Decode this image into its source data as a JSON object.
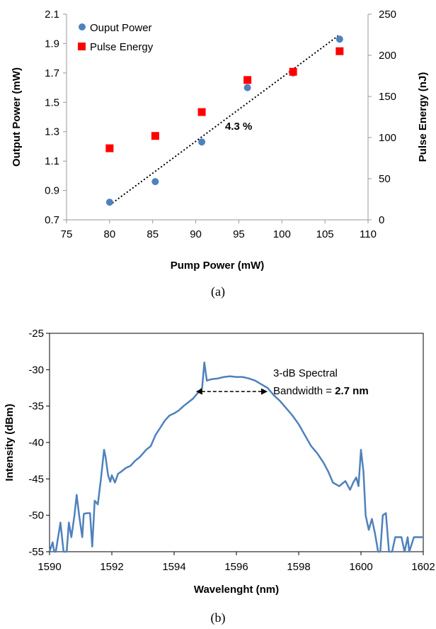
{
  "chart_data": [
    {
      "type": "scatter",
      "caption": "(a)",
      "xlabel": "Pump Power (mW)",
      "ylabel": "Output Power (mW)",
      "y2label": "Pulse Energy (nJ)",
      "xlim": [
        75,
        110
      ],
      "ylim": [
        0.7,
        2.1
      ],
      "y2lim": [
        0,
        250
      ],
      "xticks": [
        "75",
        "80",
        "85",
        "90",
        "95",
        "100",
        "105",
        "110"
      ],
      "yticks": [
        "0.7",
        "0.9",
        "1.1",
        "1.3",
        "1.5",
        "1.7",
        "1.9",
        "2.1"
      ],
      "y2ticks": [
        "0",
        "50",
        "100",
        "150",
        "200",
        "250"
      ],
      "legend_position": "top-left",
      "grid": false,
      "series": [
        {
          "name": "Ouput Power",
          "axis": "left",
          "marker": "circle",
          "color": "#4f81bd",
          "x": [
            80,
            85.3,
            90.7,
            96,
            101.3,
            106.7
          ],
          "y": [
            0.82,
            0.96,
            1.23,
            1.6,
            1.7,
            1.93
          ]
        },
        {
          "name": "Pulse Energy",
          "axis": "right",
          "marker": "square",
          "color": "#ff0000",
          "x": [
            80,
            85.3,
            90.7,
            96,
            101.3,
            106.7
          ],
          "y": [
            87,
            102,
            131,
            170,
            180,
            205
          ]
        }
      ],
      "trendline": {
        "x": [
          80,
          106.7
        ],
        "y": [
          0.8,
          1.96
        ]
      },
      "annotations": [
        {
          "text": "4.3 %",
          "x": 96.5,
          "y": 1.34
        }
      ]
    },
    {
      "type": "line",
      "caption": "(b)",
      "xlabel": "Wavelenght (nm)",
      "ylabel": "Intensity (dBm)",
      "xlim": [
        1590,
        1602
      ],
      "ylim": [
        -55,
        -25
      ],
      "xticks": [
        "1590",
        "1592",
        "1594",
        "1596",
        "1598",
        "1600",
        "1602"
      ],
      "yticks": [
        "-25",
        "-30",
        "-35",
        "-40",
        "-45",
        "-50",
        "-55"
      ],
      "grid": false,
      "series": [
        {
          "color": "#4f81bd",
          "x": [
            1590,
            1590.1,
            1590.15,
            1590.2,
            1590.35,
            1590.45,
            1590.55,
            1590.62,
            1590.7,
            1590.8,
            1590.87,
            1590.95,
            1591.05,
            1591.1,
            1591.2,
            1591.3,
            1591.37,
            1591.45,
            1591.55,
            1591.65,
            1591.75,
            1591.8,
            1591.88,
            1591.95,
            1592.0,
            1592.1,
            1592.2,
            1592.3,
            1592.45,
            1592.6,
            1592.75,
            1592.9,
            1593.0,
            1593.1,
            1593.25,
            1593.4,
            1593.55,
            1593.7,
            1593.85,
            1594.0,
            1594.15,
            1594.3,
            1594.45,
            1594.6,
            1594.7,
            1594.8,
            1594.9,
            1594.97,
            1595.05,
            1595.2,
            1595.4,
            1595.6,
            1595.8,
            1596.0,
            1596.2,
            1596.4,
            1596.6,
            1596.8,
            1597.0,
            1597.2,
            1597.4,
            1597.6,
            1597.8,
            1598.0,
            1598.2,
            1598.4,
            1598.6,
            1598.8,
            1598.95,
            1599.1,
            1599.3,
            1599.5,
            1599.65,
            1599.75,
            1599.85,
            1599.92,
            1600.0,
            1600.08,
            1600.15,
            1600.25,
            1600.35,
            1600.45,
            1600.55,
            1600.62,
            1600.7,
            1600.8,
            1600.9,
            1601.0,
            1601.1,
            1601.3,
            1601.4,
            1601.5,
            1601.55,
            1601.7,
            1601.9,
            1602.0
          ],
          "y": [
            -55,
            -53.7,
            -55,
            -55,
            -51,
            -55,
            -55,
            -51,
            -53,
            -50,
            -47.2,
            -50,
            -53,
            -49.8,
            -49.7,
            -49.7,
            -54.3,
            -48,
            -48.5,
            -45,
            -41,
            -42,
            -44.5,
            -45.4,
            -44.5,
            -45.5,
            -44.3,
            -44,
            -43.5,
            -43.2,
            -42.5,
            -42,
            -41.5,
            -41,
            -40.5,
            -39,
            -38,
            -37,
            -36.3,
            -36,
            -35.6,
            -35,
            -34.5,
            -34,
            -33.5,
            -33,
            -32.5,
            -29,
            -31.5,
            -31.3,
            -31.2,
            -31,
            -30.9,
            -31,
            -31,
            -31.2,
            -31.5,
            -32,
            -32.5,
            -33.5,
            -34.3,
            -35.3,
            -36.3,
            -37.5,
            -39,
            -40.5,
            -41.5,
            -42.8,
            -44,
            -45.5,
            -46,
            -45.3,
            -46.5,
            -45.5,
            -44.8,
            -46,
            -41,
            -44,
            -50,
            -52,
            -50.5,
            -52.5,
            -55,
            -55,
            -50,
            -49.7,
            -55,
            -55,
            -53,
            -53,
            -55,
            -53,
            -55,
            -53,
            -53,
            -53
          ]
        }
      ],
      "annotations": [
        {
          "line1": "3-dB Spectral",
          "line2_prefix": "Bandwidth = ",
          "line2_value": "2.7 nm",
          "x": 1596.5,
          "y": -29.5
        },
        {
          "type": "double-arrow",
          "x": [
            1594.7,
            1597.0
          ],
          "y": -33
        }
      ]
    }
  ]
}
